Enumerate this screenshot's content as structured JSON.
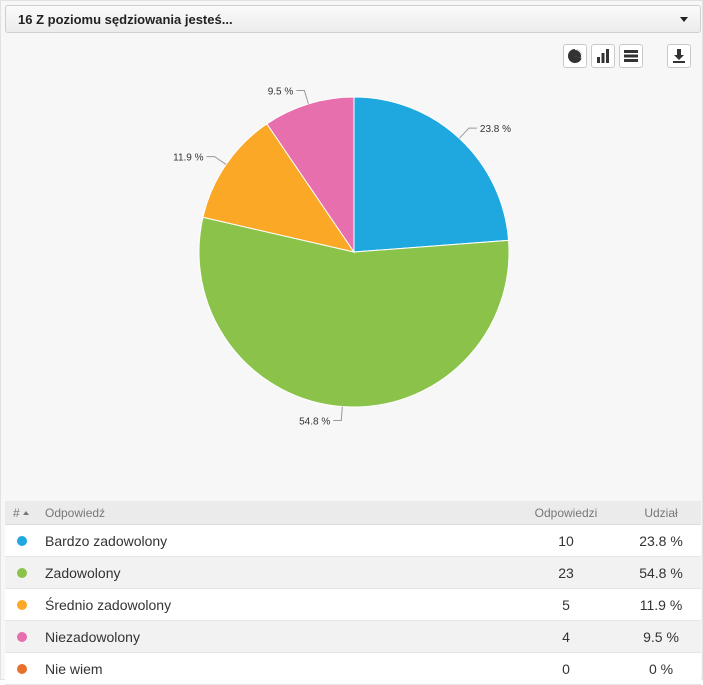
{
  "header": {
    "title": "16 Z poziomu sędziowania jesteś..."
  },
  "toolbar": {
    "icons": [
      "pie-chart-icon",
      "bar-chart-icon",
      "table-icon",
      "download-icon"
    ]
  },
  "table": {
    "headers": {
      "num": "#",
      "answer": "Odpowiedź",
      "count": "Odpowiedzi",
      "share": "Udział"
    },
    "rows": [
      {
        "label": "Bardzo zadowolony",
        "count": "10",
        "share": "23.8 %",
        "color": "#1fa8e0"
      },
      {
        "label": "Zadowolony",
        "count": "23",
        "share": "54.8 %",
        "color": "#8bc34a"
      },
      {
        "label": "Średnio zadowolony",
        "count": "5",
        "share": "11.9 %",
        "color": "#fba826"
      },
      {
        "label": "Niezadowolony",
        "count": "4",
        "share": "9.5 %",
        "color": "#e86fae"
      },
      {
        "label": "Nie wiem",
        "count": "0",
        "share": "0 %",
        "color": "#e8702a"
      }
    ]
  },
  "chart_data": {
    "type": "pie",
    "categories": [
      "Bardzo zadowolony",
      "Zadowolony",
      "Średnio zadowolony",
      "Niezadowolony",
      "Nie wiem"
    ],
    "values": [
      23.8,
      54.8,
      11.9,
      9.5,
      0
    ],
    "labels": [
      "23.8 %",
      "54.8 %",
      "11.9 %",
      "9.5 %",
      "0 %"
    ],
    "colors": [
      "#1fa8e0",
      "#8bc34a",
      "#fba826",
      "#e86fae",
      "#e8702a"
    ],
    "title": ""
  }
}
